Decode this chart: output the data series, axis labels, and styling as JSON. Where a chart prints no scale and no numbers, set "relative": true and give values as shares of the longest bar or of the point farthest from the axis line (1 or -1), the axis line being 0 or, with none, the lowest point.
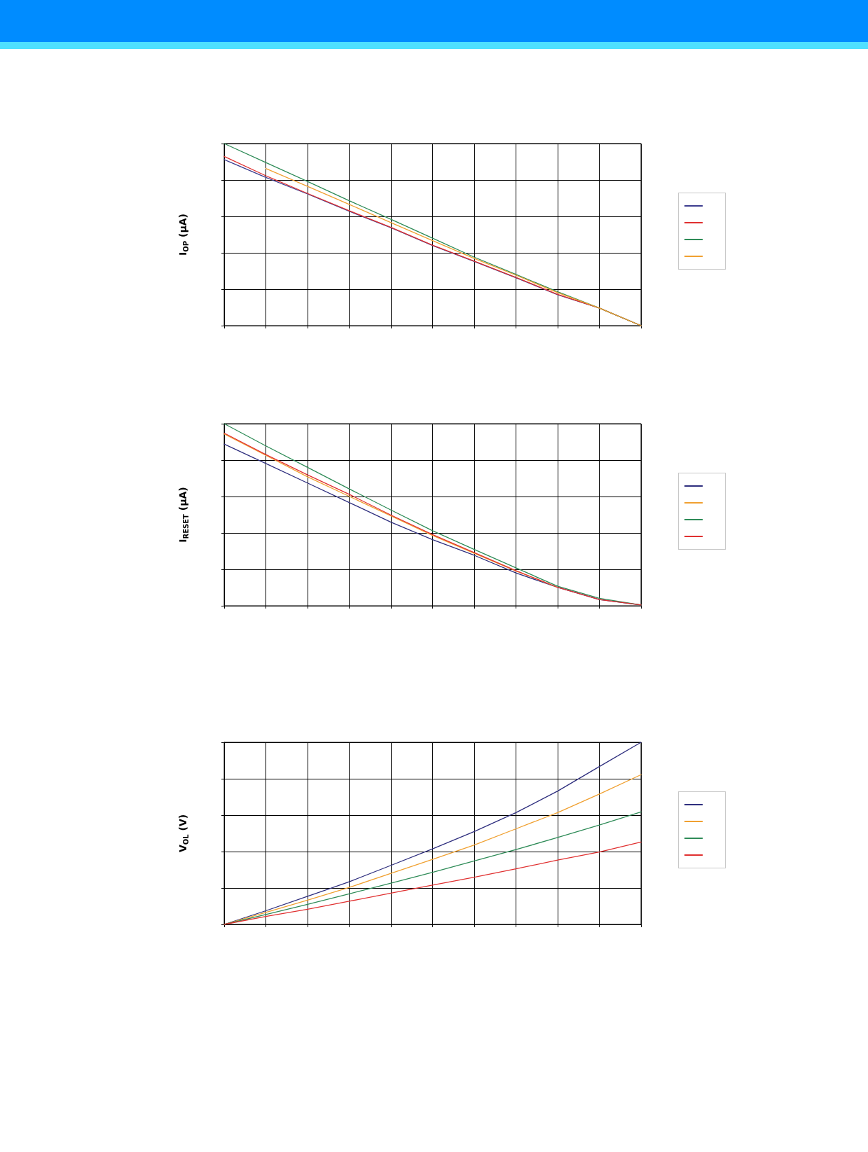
{
  "chart_data": [
    {
      "type": "line",
      "relative": true,
      "ylabel": "I$_{OP}$ (µA)",
      "categories": [
        null,
        null,
        null,
        null,
        null,
        null,
        null,
        null,
        null,
        null,
        null
      ],
      "grid": true,
      "marker": "none",
      "series": [
        {
          "color": "#3d3d8f",
          "values": [
            0.912,
            0.814,
            0.723,
            0.628,
            0.538,
            0.44,
            0.352,
            0.263,
            0.17,
            0.097,
            0
          ]
        },
        {
          "color": "#e03030",
          "values": [
            0.929,
            0.823,
            0.726,
            0.631,
            0.54,
            0.442,
            0.354,
            0.265,
            0.172,
            0.097,
            0
          ]
        },
        {
          "color": "#2e8b57",
          "values": [
            1,
            0.896,
            0.792,
            0.686,
            0.584,
            0.48,
            0.376,
            0.281,
            0.186,
            0.097,
            0
          ]
        },
        {
          "color": "#f0a030",
          "values": [
            null,
            0.863,
            0.765,
            0.666,
            0.566,
            0.467,
            0.369,
            0.277,
            0.181,
            0.097,
            0
          ]
        }
      ]
    },
    {
      "type": "line",
      "relative": true,
      "ylabel": "I$_{RESET}$ (µA)",
      "categories": [
        null,
        null,
        null,
        null,
        null,
        null,
        null,
        null,
        null,
        null,
        null
      ],
      "grid": true,
      "marker": "none",
      "series": [
        {
          "color": "#2e2e7e",
          "values": [
            0.888,
            0.781,
            0.674,
            0.567,
            0.459,
            0.363,
            0.277,
            0.18,
            0.101,
            0.034,
            0.004
          ]
        },
        {
          "color": "#f0a030",
          "values": [
            0.944,
            0.826,
            0.708,
            0.601,
            0.494,
            0.386,
            0.288,
            0.191,
            0.101,
            null,
            null
          ]
        },
        {
          "color": "#2e8b57",
          "values": [
            1,
            0.878,
            0.76,
            0.642,
            0.526,
            0.412,
            0.309,
            0.208,
            0.107,
            0.041,
            0.004
          ]
        },
        {
          "color": "#e03030",
          "values": [
            0.948,
            0.83,
            0.719,
            0.612,
            0.498,
            0.391,
            0.292,
            0.193,
            0.101,
            0.034,
            0.004
          ]
        }
      ]
    },
    {
      "type": "line",
      "relative": true,
      "ylabel": "V$_{OL}$ (V)",
      "categories": [
        null,
        null,
        null,
        null,
        null,
        null,
        null,
        null,
        null,
        null,
        null
      ],
      "grid": true,
      "marker": "none",
      "series": [
        {
          "color": "#2e2e7e",
          "values": [
            0,
            0.075,
            0.154,
            0.234,
            0.324,
            0.415,
            0.51,
            0.614,
            0.732,
            0.867,
            1
          ]
        },
        {
          "color": "#f0a030",
          "values": [
            0,
            0.066,
            0.133,
            0.203,
            0.28,
            0.357,
            0.436,
            0.525,
            0.614,
            0.716,
            0.822
          ]
        },
        {
          "color": "#2e8b57",
          "values": [
            0,
            0.054,
            0.11,
            0.168,
            0.226,
            0.286,
            0.349,
            0.411,
            0.477,
            0.546,
            0.618
          ]
        },
        {
          "color": "#e03030",
          "values": [
            0,
            0.044,
            0.083,
            0.127,
            0.172,
            0.216,
            0.259,
            0.305,
            0.353,
            0.398,
            0.452
          ]
        }
      ]
    }
  ]
}
